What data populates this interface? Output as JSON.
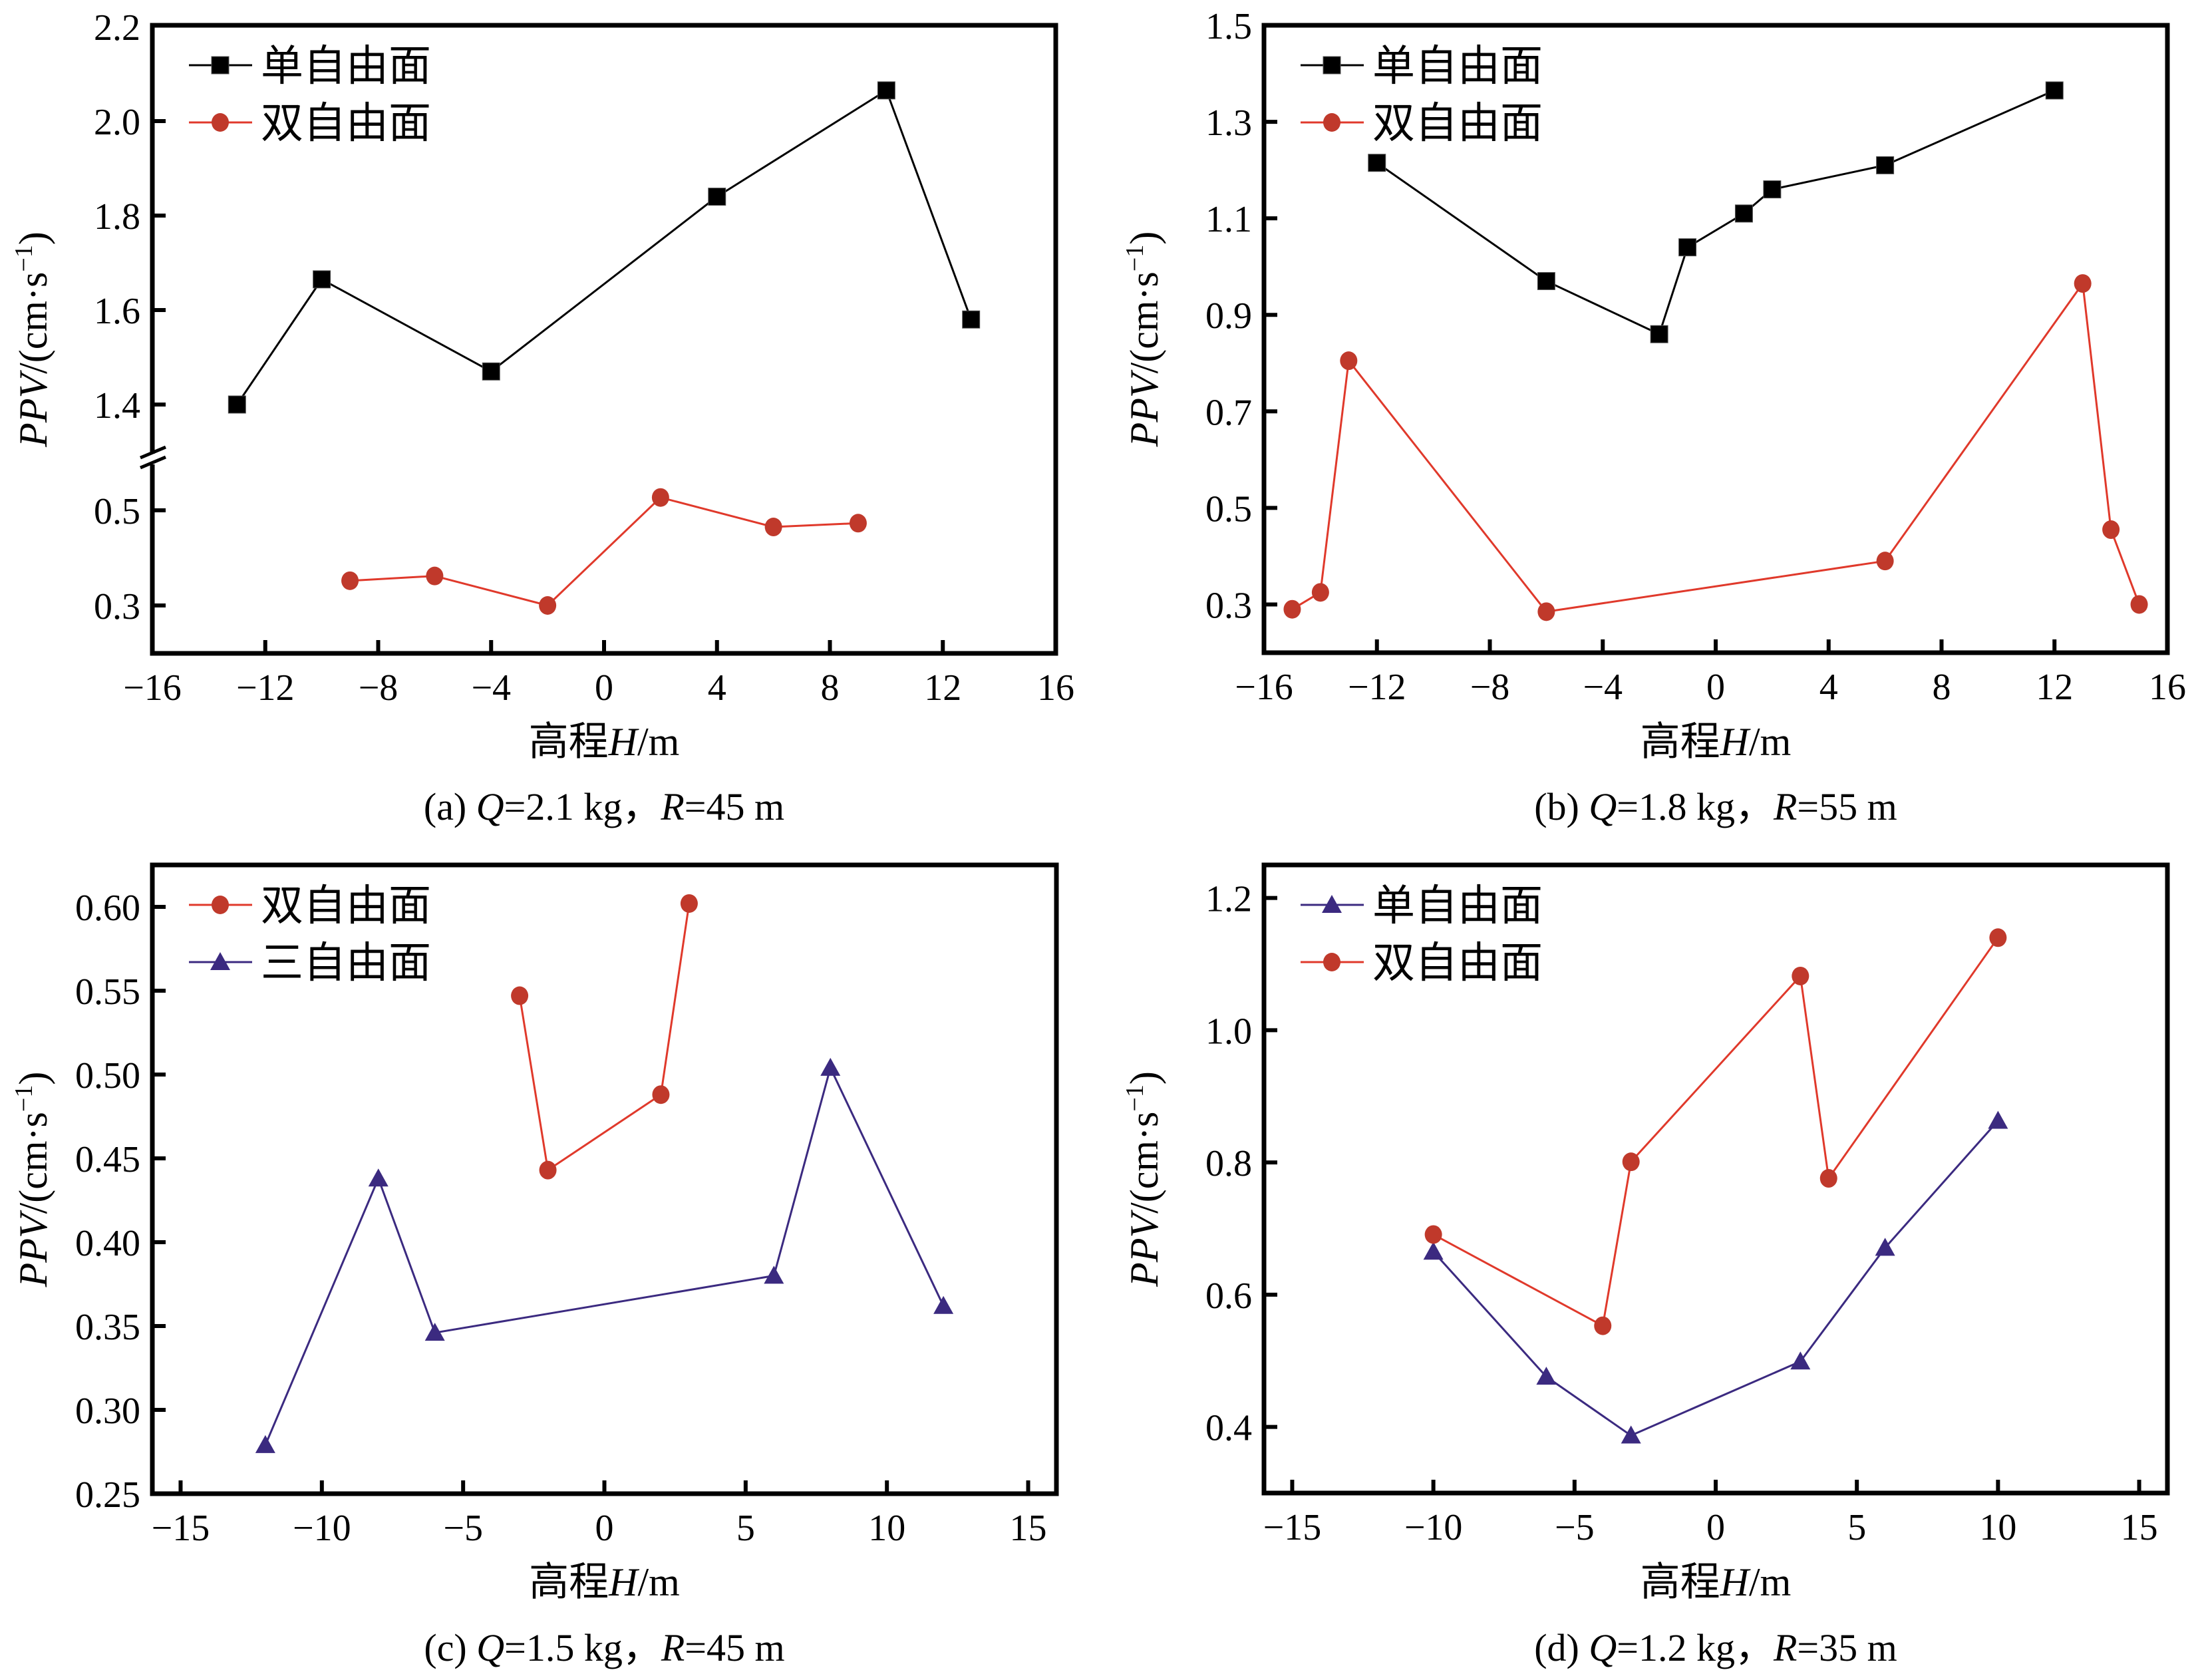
{
  "colors": {
    "single": "#000000",
    "double": "#c0392b",
    "double_line": "#e0392b",
    "triple": "#3b2a80"
  },
  "chart_data": [
    {
      "id": "a",
      "type": "line",
      "caption": {
        "prefix": "(a) ",
        "q_var": "Q",
        "q_val": "=2.1 kg，",
        "r_var": "R",
        "r_val": "=45 m"
      },
      "xlabel": {
        "cn": "高程",
        "var": "H",
        "unit": "/m"
      },
      "ylabel": {
        "var": "PPV",
        "unit": "/(cm·s",
        "sup": "−1",
        "close": ")"
      },
      "xlim": [
        -16,
        16
      ],
      "xticks": [
        -16,
        -12,
        -8,
        -4,
        0,
        4,
        8,
        12,
        16
      ],
      "xtick_labels": [
        "−16",
        "−12",
        "−8",
        "−4",
        "0",
        "4",
        "8",
        "12",
        "16"
      ],
      "y_broken": true,
      "ylim_upper": [
        1.285,
        2.2
      ],
      "ylim_lower": [
        0.2,
        0.61
      ],
      "yticks": [
        2.2,
        2.0,
        1.8,
        1.6,
        1.4,
        0.5,
        0.3
      ],
      "ytick_labels": [
        "2.2",
        "2.0",
        "1.8",
        "1.6",
        "1.4",
        "0.5",
        "0.3"
      ],
      "legend": "top-left",
      "series": [
        {
          "name": "单自由面",
          "marker": "square",
          "color_key": "single",
          "x": [
            -13,
            -10,
            -4,
            4,
            10,
            13
          ],
          "y": [
            1.4,
            1.665,
            1.47,
            1.84,
            2.065,
            1.58
          ]
        },
        {
          "name": "双自由面",
          "marker": "circle",
          "color_key": "double",
          "x": [
            -9,
            -6,
            -2,
            2,
            6,
            9
          ],
          "y": [
            0.352,
            0.362,
            0.3,
            0.527,
            0.465,
            0.473
          ]
        }
      ]
    },
    {
      "id": "b",
      "type": "line",
      "caption": {
        "prefix": "(b) ",
        "q_var": "Q",
        "q_val": "=1.8 kg，",
        "r_var": "R",
        "r_val": "=55 m"
      },
      "xlabel": {
        "cn": "高程",
        "var": "H",
        "unit": "/m"
      },
      "ylabel": {
        "var": "PPV",
        "unit": "/(cm·s",
        "sup": "−1",
        "close": ")"
      },
      "xlim": [
        -16,
        16
      ],
      "xticks": [
        -16,
        -12,
        -8,
        -4,
        0,
        4,
        8,
        12,
        16
      ],
      "xtick_labels": [
        "−16",
        "−12",
        "−8",
        "−4",
        "0",
        "4",
        "8",
        "12",
        "16"
      ],
      "ylim": [
        0.2,
        1.5
      ],
      "yticks": [
        1.5,
        1.3,
        1.1,
        0.9,
        0.7,
        0.5,
        0.3
      ],
      "ytick_labels": [
        "1.5",
        "1.3",
        "1.1",
        "0.9",
        "0.7",
        "0.5",
        "0.3"
      ],
      "legend": "top-left",
      "series": [
        {
          "name": "单自由面",
          "marker": "square",
          "color_key": "single",
          "x": [
            -12,
            -6,
            -2,
            -1,
            1,
            2,
            6,
            12
          ],
          "y": [
            1.215,
            0.97,
            0.86,
            1.04,
            1.11,
            1.16,
            1.21,
            1.365
          ]
        },
        {
          "name": "双自由面",
          "marker": "circle",
          "color_key": "double",
          "x": [
            -15,
            -14,
            -13,
            -6,
            6,
            13,
            14,
            15
          ],
          "y": [
            0.29,
            0.325,
            0.805,
            0.285,
            0.39,
            0.965,
            0.455,
            0.3
          ]
        }
      ]
    },
    {
      "id": "c",
      "type": "line",
      "caption": {
        "prefix": "(c) ",
        "q_var": "Q",
        "q_val": "=1.5 kg，",
        "r_var": "R",
        "r_val": "=45 m"
      },
      "xlabel": {
        "cn": "高程",
        "var": "H",
        "unit": "/m"
      },
      "ylabel": {
        "var": "PPV",
        "unit": "/(cm·s",
        "sup": "−1",
        "close": ")"
      },
      "xlim": [
        -16,
        16
      ],
      "xticks": [
        -15,
        -10,
        -5,
        0,
        5,
        10,
        15
      ],
      "xtick_labels": [
        "−15",
        "−10",
        "−5",
        "0",
        "5",
        "10",
        "15"
      ],
      "ylim": [
        0.25,
        0.625
      ],
      "yticks": [
        0.6,
        0.55,
        0.5,
        0.45,
        0.4,
        0.35,
        0.3,
        0.25
      ],
      "ytick_labels": [
        "0.60",
        "0.55",
        "0.50",
        "0.45",
        "0.40",
        "0.35",
        "0.30",
        "0.25"
      ],
      "legend": "top-left",
      "series": [
        {
          "name": "双自由面",
          "marker": "circle",
          "color_key": "double",
          "x": [
            -3,
            -2,
            2,
            3
          ],
          "y": [
            0.547,
            0.443,
            0.488,
            0.602
          ]
        },
        {
          "name": "三自由面",
          "marker": "triangle",
          "color_key": "triple",
          "x": [
            -12,
            -8,
            -6,
            6,
            8,
            12
          ],
          "y": [
            0.279,
            0.438,
            0.346,
            0.38,
            0.504,
            0.362
          ]
        }
      ]
    },
    {
      "id": "d",
      "type": "line",
      "caption": {
        "prefix": "(d) ",
        "q_var": "Q",
        "q_val": "=1.2 kg，",
        "r_var": "R",
        "r_val": "=35 m"
      },
      "xlabel": {
        "cn": "高程",
        "var": "H",
        "unit": "/m"
      },
      "ylabel": {
        "var": "PPV",
        "unit": "/(cm·s",
        "sup": "−1",
        "close": ")"
      },
      "xlim": [
        -16,
        16
      ],
      "xticks": [
        -15,
        -10,
        -5,
        0,
        5,
        10,
        15
      ],
      "xtick_labels": [
        "−15",
        "−10",
        "−5",
        "0",
        "5",
        "10",
        "15"
      ],
      "ylim": [
        0.3,
        1.25
      ],
      "yticks": [
        1.2,
        1.0,
        0.8,
        0.6,
        0.4
      ],
      "ytick_labels": [
        "1.2",
        "1.0",
        "0.8",
        "0.6",
        "0.4"
      ],
      "legend": "top-left",
      "series": [
        {
          "name": "单自由面",
          "marker": "triangle",
          "color_key": "triple",
          "x": [
            -10,
            -6,
            -3,
            3,
            6,
            10
          ],
          "y": [
            0.665,
            0.476,
            0.387,
            0.499,
            0.671,
            0.863
          ]
        },
        {
          "name": "双自由面",
          "marker": "circle",
          "color_key": "double",
          "x": [
            -10,
            -4,
            -3,
            3,
            4,
            10
          ],
          "y": [
            0.691,
            0.553,
            0.801,
            1.082,
            0.776,
            1.14
          ]
        }
      ]
    }
  ]
}
